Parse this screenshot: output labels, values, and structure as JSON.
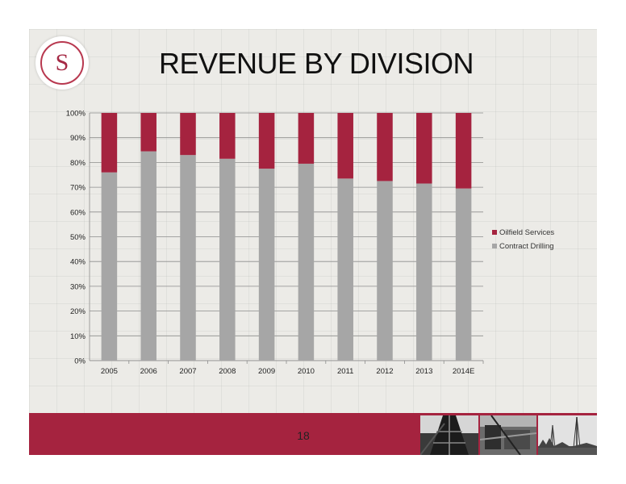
{
  "slide": {
    "title": "REVENUE BY DIVISION",
    "logo_letter": "S",
    "page_number": "18"
  },
  "colors": {
    "oilfield_services": "#a5233f",
    "contract_drilling": "#a6a6a6",
    "footer": "#a5233f"
  },
  "chart_data": {
    "type": "bar",
    "stacked": true,
    "percent": true,
    "categories": [
      "2005",
      "2006",
      "2007",
      "2008",
      "2009",
      "2010",
      "2011",
      "2012",
      "2013",
      "2014E"
    ],
    "series": [
      {
        "name": "Contract Drilling",
        "values": [
          76,
          84.5,
          83,
          81.5,
          77.5,
          79.5,
          73.5,
          72.5,
          71.5,
          69.5
        ]
      },
      {
        "name": "Oilfield Services",
        "values": [
          24,
          15.5,
          17,
          18.5,
          22.5,
          20.5,
          26.5,
          27.5,
          28.5,
          30.5
        ]
      }
    ],
    "yticks": [
      "0%",
      "10%",
      "20%",
      "30%",
      "40%",
      "50%",
      "60%",
      "70%",
      "80%",
      "90%",
      "100%"
    ],
    "ylim": [
      0,
      100
    ],
    "legend": [
      "Oilfield Services",
      "Contract Drilling"
    ],
    "legend_position": "right",
    "grid": true
  }
}
